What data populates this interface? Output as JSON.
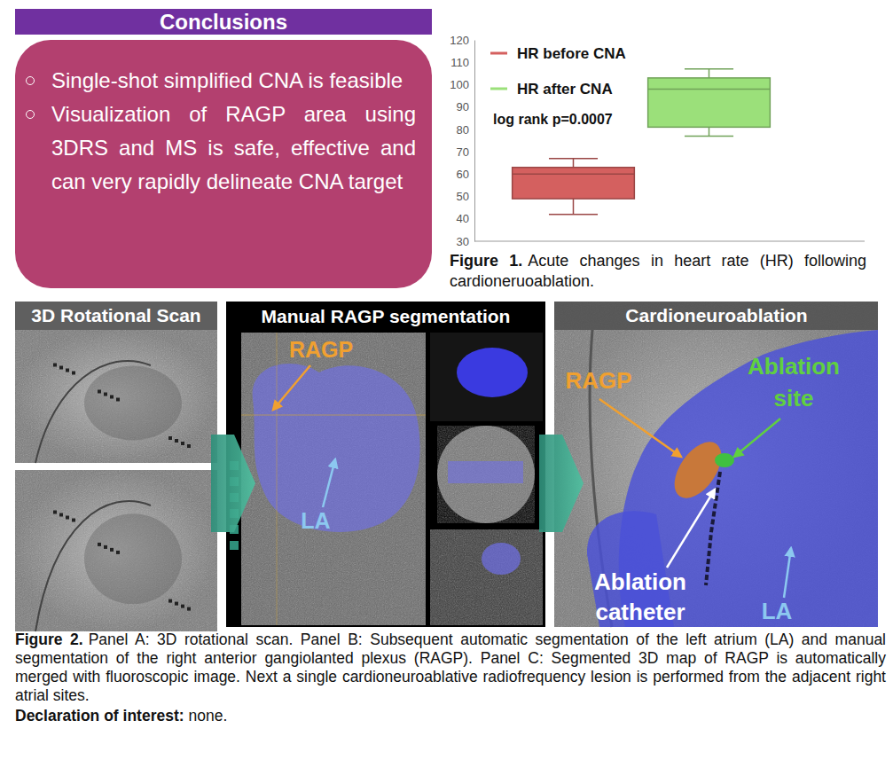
{
  "conclusions": {
    "title": "Conclusions",
    "bullets": [
      "Single-shot simplified CNA is feasible",
      "Visualization of RAGP area using 3DRS and MS is safe, effective and can very rapidly delineate CNA target"
    ]
  },
  "chart_data": {
    "type": "box",
    "series": [
      {
        "name": "HR before CNA",
        "color": "#d4605f",
        "min": 42,
        "q1": 49,
        "median": 60,
        "q3": 63,
        "max": 67
      },
      {
        "name": "HR after CNA",
        "color": "#9be07a",
        "min": 77,
        "q1": 81,
        "median": 98,
        "q3": 103,
        "max": 107
      }
    ],
    "annotation": "log rank p=0.0007",
    "ylim": [
      30,
      120
    ],
    "yticks": [
      30,
      40,
      50,
      60,
      70,
      80,
      90,
      100,
      110,
      120
    ],
    "tick_labels": "y",
    "grid": false
  },
  "figure1_caption": {
    "label": "Figure 1.",
    "text": "Acute changes in heart rate (HR) following cardioneruoablation."
  },
  "figure2": {
    "panels": [
      {
        "title": "3D Rotational Scan",
        "labels": []
      },
      {
        "title": "Manual RAGP segmentation",
        "labels": [
          "RAGP",
          "LA"
        ]
      },
      {
        "title": "Cardioneuroablation",
        "labels": [
          "RAGP",
          "Ablation site",
          "Ablation catheter",
          "LA"
        ]
      }
    ],
    "caption": {
      "label": "Figure 2.",
      "text": "Panel A: 3D rotational scan. Panel B: Subsequent automatic segmentation of the left atrium (LA) and manual segmentation of the right anterior gangiolanted  plexus (RAGP). Panel C: Segmented 3D map of RAGP is automatically merged with fluoroscopic image. Next  a single cardioneuroablative radiofrequency lesion is performed from the adjacent right atrial sites."
    }
  },
  "declaration": {
    "label": "Declaration of interest:",
    "text": "none."
  }
}
